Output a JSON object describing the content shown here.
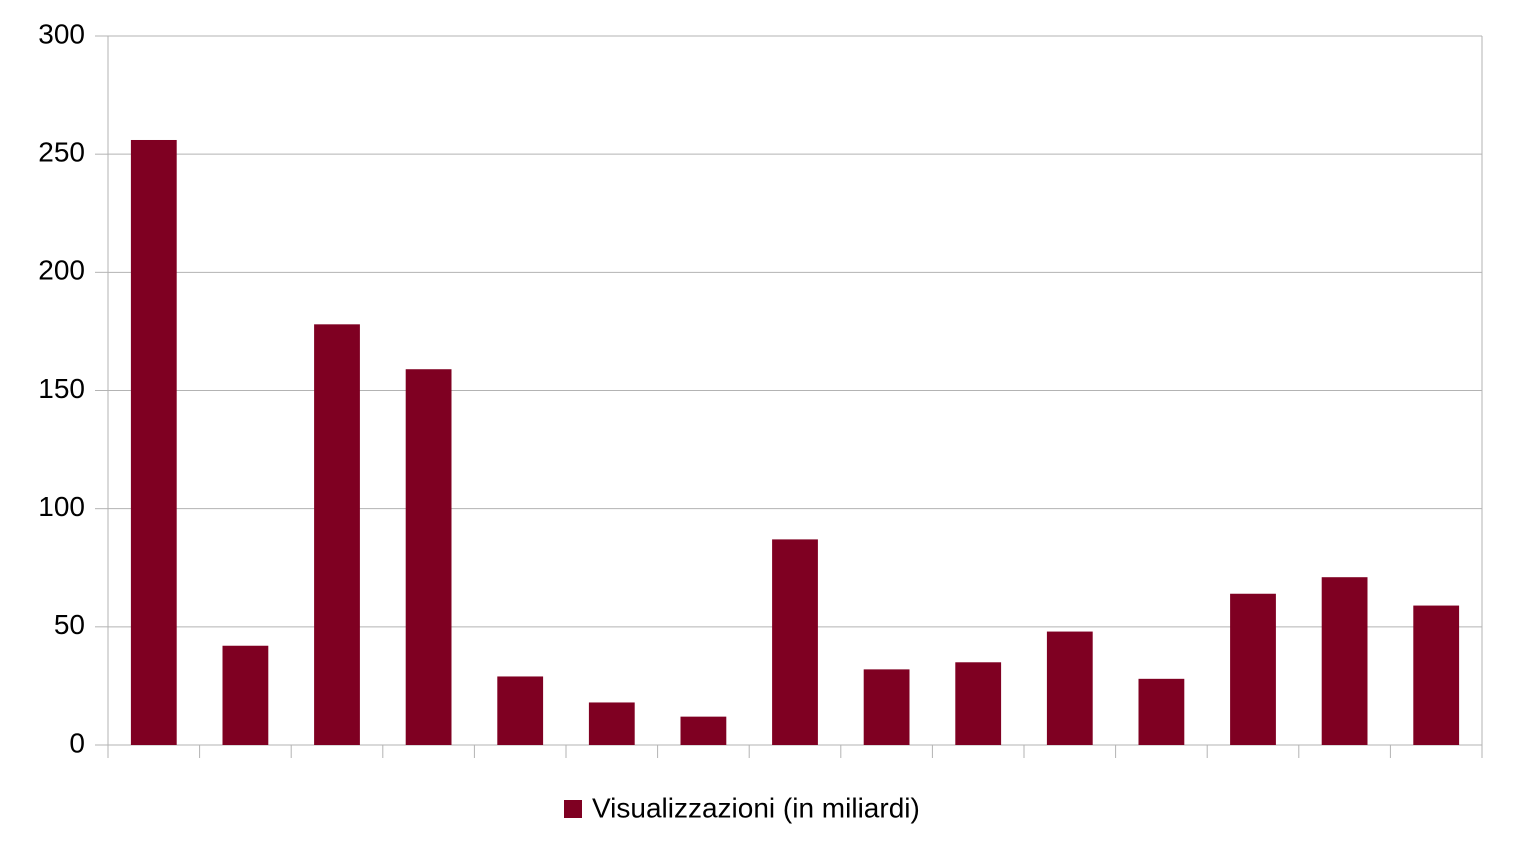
{
  "chart_data": {
    "type": "bar",
    "categories": [
      null,
      null,
      null,
      null,
      null,
      null,
      null,
      null,
      null,
      null,
      null,
      null,
      null,
      null,
      null
    ],
    "series": [
      {
        "name": "Visualizzazioni (in miliardi)",
        "color": "#7f0022",
        "values": [
          256,
          42,
          178,
          159,
          29,
          18,
          12,
          87,
          32,
          35,
          48,
          28,
          64,
          71,
          59
        ]
      }
    ],
    "ylim": [
      0,
      300
    ],
    "yticks": [
      0,
      50,
      100,
      150,
      200,
      250,
      300
    ],
    "grid": true,
    "legend": "bottom"
  }
}
